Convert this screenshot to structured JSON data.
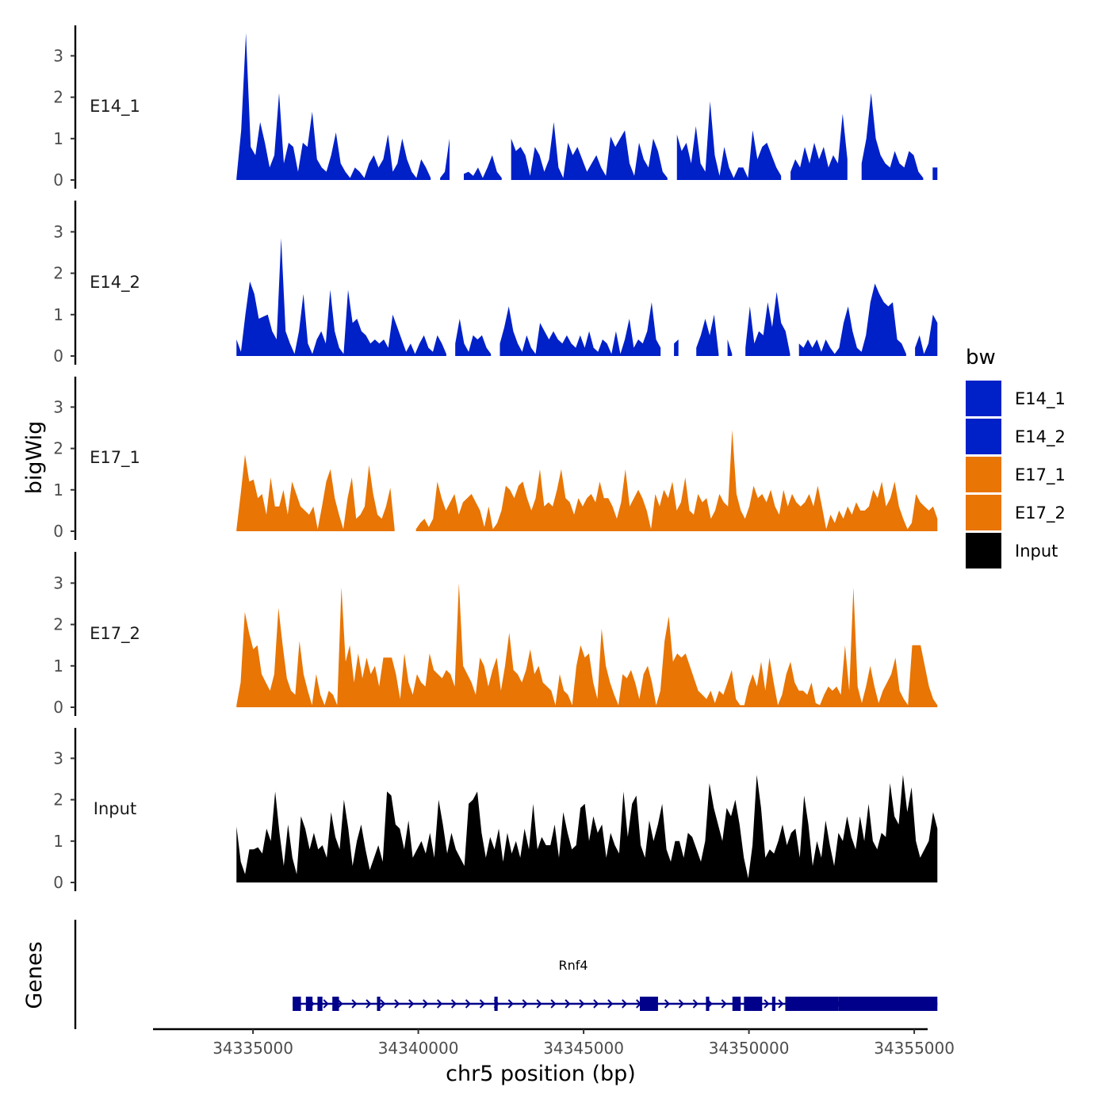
{
  "chart_data": {
    "type": "area",
    "title": "",
    "ylabel": "bigWig",
    "xlabel": "chr5 position (bp)",
    "ylim": [
      0,
      3.7
    ],
    "yticks": [
      "0",
      "1",
      "2",
      "3"
    ],
    "xlim": [
      34332000,
      34355000
    ],
    "xticks": [
      "34335000",
      "34340000",
      "34345000",
      "34350000",
      "34355000"
    ],
    "data_start": 34334500,
    "data_end": 34355700,
    "legend": {
      "title": "bw",
      "entries": [
        {
          "label": "E14_1",
          "color": "#0020c8"
        },
        {
          "label": "E14_2",
          "color": "#0020c8"
        },
        {
          "label": "E17_1",
          "color": "#e87504"
        },
        {
          "label": "E17_2",
          "color": "#e87504"
        },
        {
          "label": "Input",
          "color": "#000000"
        }
      ]
    },
    "series": [
      {
        "name": "E14_1",
        "color": "#0020c8",
        "values": [
          0.05,
          1.2,
          3.55,
          0.8,
          0.6,
          1.4,
          0.9,
          0.3,
          0.6,
          2.1,
          0.4,
          0.9,
          0.8,
          0.2,
          0.9,
          0.8,
          1.65,
          0.5,
          0.3,
          0.2,
          0.6,
          1.15,
          0.4,
          0.2,
          0.05,
          0.3,
          0.2,
          0.05,
          0.4,
          0.6,
          0.3,
          0.5,
          1.1,
          0.2,
          0.4,
          1.0,
          0.5,
          0.2,
          0.05,
          0.5,
          0.3,
          0.05,
          null,
          0.05,
          0.2,
          1.0,
          null,
          null,
          0.15,
          0.2,
          0.1,
          0.3,
          0.05,
          0.3,
          0.6,
          0.2,
          0.05,
          null,
          1.0,
          0.7,
          0.8,
          0.6,
          0.1,
          0.8,
          0.6,
          0.2,
          0.5,
          1.4,
          0.3,
          0.05,
          0.9,
          0.6,
          0.8,
          0.5,
          0.2,
          0.4,
          0.6,
          0.3,
          0.1,
          1.05,
          0.8,
          1.0,
          1.2,
          0.4,
          0.1,
          0.9,
          0.5,
          0.3,
          1.0,
          0.7,
          0.2,
          0.05,
          null,
          1.1,
          0.7,
          0.9,
          0.4,
          1.3,
          0.4,
          0.2,
          1.9,
          0.6,
          0.1,
          0.8,
          0.3,
          0.05,
          0.3,
          0.3,
          0.05,
          1.2,
          0.5,
          0.8,
          0.9,
          0.6,
          0.3,
          0.1,
          null,
          0.2,
          0.5,
          0.3,
          0.8,
          0.4,
          0.9,
          0.5,
          0.8,
          0.3,
          0.6,
          0.4,
          1.6,
          0.5,
          null,
          null,
          0.4,
          1.0,
          2.1,
          1.0,
          0.6,
          0.4,
          0.3,
          0.7,
          0.4,
          0.3,
          0.7,
          0.6,
          0.2,
          0.05,
          null,
          0.3,
          0.3
        ]
      },
      {
        "name": "E14_2",
        "color": "#0020c8",
        "values": [
          0.4,
          0.1,
          1.0,
          1.8,
          1.5,
          0.9,
          0.95,
          1.0,
          0.6,
          0.4,
          2.85,
          0.6,
          0.3,
          0.05,
          0.6,
          1.5,
          0.3,
          0.05,
          0.4,
          0.6,
          0.3,
          1.6,
          0.6,
          0.2,
          0.05,
          1.6,
          0.8,
          0.9,
          0.6,
          0.5,
          0.3,
          0.4,
          0.3,
          0.4,
          0.2,
          1.0,
          0.7,
          0.4,
          0.1,
          0.3,
          0.05,
          0.3,
          0.5,
          0.2,
          0.1,
          0.5,
          0.3,
          0.05,
          null,
          0.3,
          0.9,
          0.3,
          0.1,
          0.5,
          0.4,
          0.5,
          0.2,
          0.05,
          null,
          0.3,
          0.7,
          1.2,
          0.6,
          0.3,
          0.1,
          0.5,
          0.2,
          0.05,
          0.8,
          0.6,
          0.4,
          0.6,
          0.4,
          0.3,
          0.5,
          0.3,
          0.2,
          0.5,
          0.2,
          0.6,
          0.2,
          0.1,
          0.4,
          0.3,
          0.05,
          0.6,
          0.05,
          0.4,
          0.9,
          0.2,
          0.4,
          0.3,
          0.6,
          1.3,
          0.4,
          0.2,
          null,
          null,
          0.3,
          0.4,
          null,
          null,
          null,
          0.2,
          0.5,
          0.9,
          0.5,
          1.0,
          0.05,
          null,
          0.4,
          0.05,
          null,
          null,
          0.2,
          1.2,
          0.3,
          0.6,
          0.5,
          1.3,
          0.7,
          1.55,
          0.8,
          0.6,
          0.05,
          null,
          0.3,
          0.2,
          0.4,
          0.2,
          0.4,
          0.1,
          0.4,
          0.2,
          0.05,
          0.2,
          0.8,
          1.2,
          0.6,
          0.2,
          0.1,
          0.5,
          1.3,
          1.75,
          1.5,
          1.3,
          1.2,
          1.3,
          0.4,
          0.3,
          0.05,
          null,
          0.2,
          0.5,
          0.05,
          0.3,
          1.0,
          0.8
        ]
      },
      {
        "name": "E17_1",
        "color": "#e87504",
        "values": [
          0.05,
          0.9,
          1.85,
          1.2,
          1.25,
          0.8,
          0.9,
          0.4,
          1.3,
          0.6,
          0.6,
          1.0,
          0.4,
          1.2,
          0.9,
          0.6,
          0.5,
          0.4,
          0.6,
          0.05,
          0.6,
          1.2,
          1.5,
          0.8,
          0.4,
          0.05,
          0.8,
          1.3,
          0.3,
          0.4,
          0.6,
          1.6,
          0.9,
          0.4,
          0.3,
          0.6,
          1.05,
          0.05,
          null,
          null,
          null,
          null,
          0.05,
          0.2,
          0.3,
          0.1,
          0.3,
          1.2,
          0.8,
          0.5,
          0.7,
          0.9,
          0.4,
          0.7,
          0.8,
          0.9,
          0.7,
          0.5,
          0.1,
          0.6,
          0.05,
          0.2,
          0.5,
          1.1,
          1.0,
          0.8,
          1.1,
          1.2,
          0.8,
          0.5,
          0.8,
          1.5,
          0.6,
          0.7,
          0.6,
          1.0,
          1.5,
          0.8,
          0.7,
          0.4,
          0.8,
          0.6,
          0.8,
          0.9,
          0.7,
          1.2,
          0.8,
          0.8,
          0.6,
          0.3,
          0.7,
          1.5,
          0.6,
          0.8,
          1.0,
          0.8,
          0.5,
          0.05,
          0.9,
          0.6,
          1.0,
          0.8,
          1.2,
          0.5,
          0.7,
          1.3,
          0.5,
          0.4,
          0.9,
          0.7,
          0.8,
          0.3,
          0.5,
          0.9,
          0.7,
          0.6,
          2.45,
          0.9,
          0.5,
          0.3,
          0.6,
          1.1,
          0.8,
          0.9,
          0.7,
          1.0,
          0.6,
          0.4,
          1.0,
          0.6,
          0.9,
          0.7,
          0.6,
          0.7,
          0.9,
          0.6,
          1.1,
          0.6,
          0.05,
          0.4,
          0.2,
          0.5,
          0.3,
          0.6,
          0.4,
          0.7,
          0.5,
          0.5,
          0.6,
          1.0,
          0.8,
          1.2,
          0.6,
          0.8,
          1.2,
          0.6,
          0.3,
          0.05,
          0.2,
          0.9,
          0.7,
          0.6,
          0.5,
          0.6,
          0.3
        ]
      },
      {
        "name": "E17_2",
        "color": "#e87504",
        "values": [
          0.05,
          0.6,
          2.3,
          1.8,
          1.4,
          1.5,
          0.8,
          0.6,
          0.4,
          0.8,
          2.4,
          1.5,
          0.7,
          0.4,
          0.3,
          1.6,
          0.8,
          0.4,
          0.05,
          0.8,
          0.3,
          0.05,
          0.4,
          0.3,
          0.05,
          2.9,
          1.1,
          1.5,
          0.6,
          1.3,
          0.7,
          1.2,
          0.8,
          1.0,
          0.5,
          1.2,
          1.2,
          1.2,
          0.8,
          0.2,
          1.3,
          0.6,
          0.3,
          0.8,
          0.6,
          0.5,
          1.3,
          0.9,
          0.8,
          0.7,
          0.9,
          0.8,
          0.5,
          3.0,
          1.0,
          0.8,
          0.6,
          0.3,
          1.2,
          1.0,
          0.5,
          0.9,
          1.2,
          0.4,
          1.0,
          1.8,
          0.9,
          0.8,
          0.6,
          0.9,
          1.4,
          0.8,
          1.0,
          0.6,
          0.5,
          0.4,
          0.05,
          0.8,
          0.4,
          0.3,
          0.05,
          1.0,
          1.5,
          1.2,
          1.3,
          0.6,
          0.2,
          1.9,
          1.0,
          0.6,
          0.3,
          0.05,
          0.8,
          0.7,
          0.9,
          0.6,
          0.2,
          0.8,
          1.0,
          0.6,
          0.05,
          0.4,
          1.6,
          2.2,
          1.1,
          1.3,
          1.2,
          1.3,
          1.0,
          0.7,
          0.4,
          0.3,
          0.2,
          0.4,
          0.1,
          0.4,
          0.3,
          0.6,
          0.9,
          0.2,
          0.05,
          0.05,
          0.5,
          0.8,
          0.5,
          1.1,
          0.4,
          1.2,
          0.6,
          0.05,
          0.3,
          0.8,
          1.1,
          0.6,
          0.4,
          0.4,
          0.3,
          0.6,
          0.1,
          0.05,
          0.3,
          0.5,
          0.4,
          0.5,
          0.3,
          1.5,
          0.4,
          2.9,
          0.5,
          0.1,
          0.5,
          1.0,
          0.5,
          0.1,
          0.4,
          0.6,
          0.8,
          1.2,
          0.4,
          0.2,
          0.05,
          1.5,
          1.5,
          1.5,
          1.0,
          0.5,
          0.2,
          0.05
        ]
      },
      {
        "name": "Input",
        "color": "#000000",
        "values": [
          1.35,
          0.5,
          0.2,
          0.8,
          0.8,
          0.85,
          0.7,
          1.3,
          1.0,
          2.2,
          1.2,
          0.4,
          1.4,
          0.6,
          0.2,
          1.6,
          1.3,
          0.8,
          1.2,
          0.8,
          0.9,
          0.6,
          1.7,
          1.1,
          0.8,
          2.0,
          1.3,
          0.4,
          1.0,
          1.4,
          0.8,
          0.3,
          0.6,
          0.9,
          0.5,
          2.2,
          2.1,
          1.4,
          1.3,
          0.8,
          1.5,
          0.6,
          0.8,
          1.0,
          0.7,
          1.2,
          0.6,
          2.0,
          1.4,
          0.7,
          1.2,
          0.8,
          0.6,
          0.4,
          1.9,
          2.0,
          2.2,
          1.2,
          0.6,
          1.1,
          0.8,
          1.3,
          0.5,
          1.2,
          0.7,
          1.0,
          0.6,
          1.3,
          0.8,
          1.9,
          0.8,
          1.1,
          0.9,
          0.9,
          1.4,
          0.6,
          1.7,
          1.2,
          0.8,
          0.9,
          1.8,
          1.9,
          1.0,
          1.6,
          1.2,
          1.4,
          0.6,
          1.2,
          0.9,
          0.7,
          2.2,
          1.1,
          1.9,
          2.1,
          0.9,
          0.6,
          1.5,
          1.0,
          1.4,
          1.9,
          0.8,
          0.5,
          1.0,
          1.0,
          0.6,
          1.2,
          1.1,
          0.8,
          0.5,
          1.0,
          2.4,
          1.8,
          1.4,
          1.0,
          1.8,
          1.6,
          2.0,
          1.4,
          0.6,
          0.1,
          0.9,
          2.6,
          1.8,
          0.6,
          0.8,
          0.7,
          1.0,
          1.4,
          0.9,
          1.2,
          1.3,
          0.6,
          2.1,
          1.4,
          0.4,
          1.0,
          0.6,
          1.5,
          0.9,
          0.4,
          1.2,
          1.0,
          1.6,
          1.1,
          0.8,
          1.6,
          1.0,
          1.9,
          1.0,
          0.8,
          1.2,
          1.1,
          2.4,
          1.6,
          1.4,
          2.6,
          1.7,
          2.3,
          1.0,
          0.6,
          0.8,
          1.0,
          1.7,
          1.3
        ]
      }
    ],
    "genes": {
      "track_label": "Genes",
      "name": "Rnf4",
      "strand": "+",
      "color": "#00008b",
      "start": 34336200,
      "end": 34355700,
      "exons": [
        [
          34336200,
          34336450
        ],
        [
          34336600,
          34336800
        ],
        [
          34336950,
          34337100
        ],
        [
          34337400,
          34337600
        ],
        [
          34338750,
          34338850
        ],
        [
          34342300,
          34342400
        ],
        [
          34346700,
          34347250
        ],
        [
          34348700,
          34348800
        ],
        [
          34349500,
          34349750
        ],
        [
          34349850,
          34350400
        ],
        [
          34350700,
          34350800
        ],
        [
          34351100,
          34352700
        ],
        [
          34352700,
          34355700
        ]
      ]
    }
  }
}
